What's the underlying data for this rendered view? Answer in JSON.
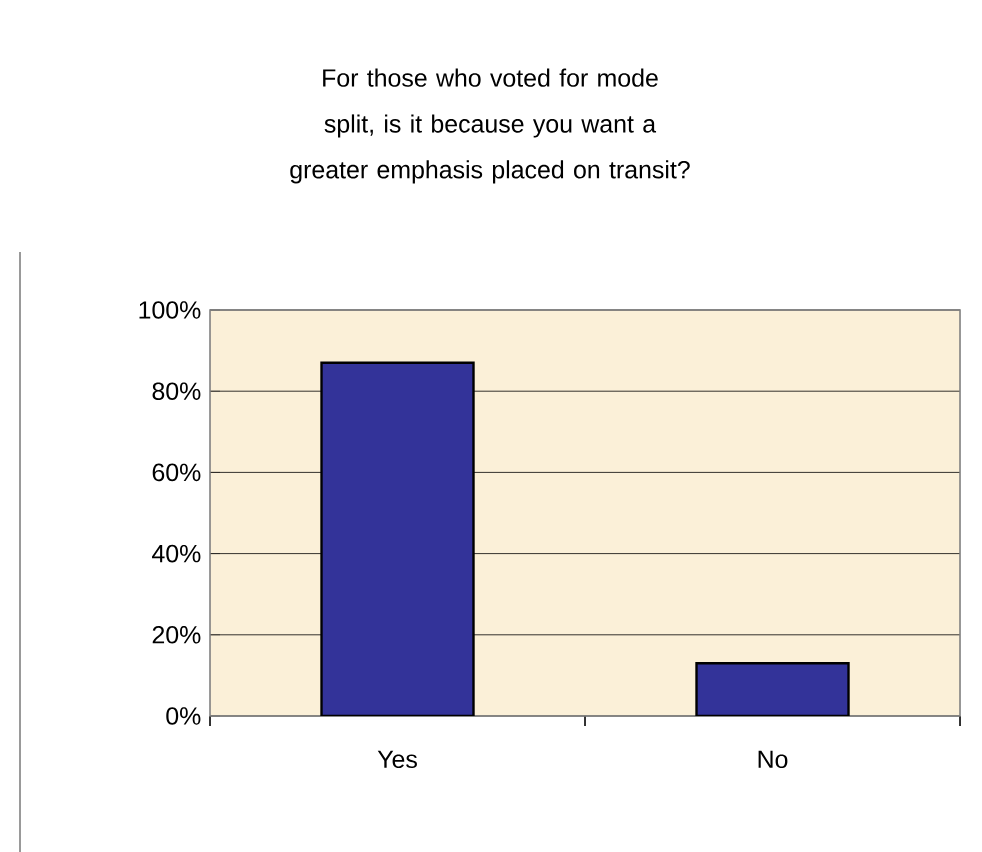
{
  "chart_data": {
    "type": "bar",
    "title": "For those who voted for mode split, is it because you want a greater emphasis placed on transit?",
    "categories": [
      "Yes",
      "No"
    ],
    "values": [
      87,
      13
    ],
    "color": "#333399",
    "ylim": [
      0,
      100
    ],
    "yticks": [
      {
        "value": 0,
        "label": "0%"
      },
      {
        "value": 20,
        "label": "20%"
      },
      {
        "value": 40,
        "label": "40%"
      },
      {
        "value": 60,
        "label": "60%"
      },
      {
        "value": 80,
        "label": "80%"
      },
      {
        "value": 100,
        "label": "100%"
      }
    ],
    "grid": "y"
  }
}
